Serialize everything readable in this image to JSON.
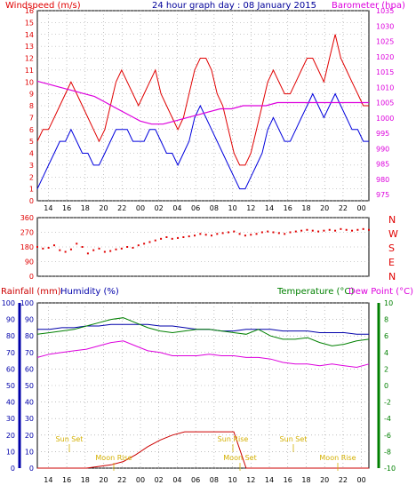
{
  "header": {
    "left_label": "Windspeed (m/s)",
    "title": "24 hour graph day : 08 January 2015",
    "right_label": "Barometer (hpa)"
  },
  "colors": {
    "wind_gust": "#e00000",
    "wind_avg": "#0000dd",
    "barometer": "#dd00dd",
    "direction": "#e00000",
    "humidity": "#0000aa",
    "temperature": "#008000",
    "dewpoint": "#dd00dd",
    "rainfall": "#cc0000",
    "sun_moon": "#d4b000",
    "axis": "#000000",
    "grid": "#999999"
  },
  "chart_data": [
    {
      "type": "line",
      "title": "24 hour graph day : 08 January 2015",
      "xlabel": "",
      "x_ticks": [
        "14",
        "16",
        "18",
        "20",
        "22",
        "00",
        "02",
        "04",
        "06",
        "08",
        "10",
        "12",
        "14",
        "16",
        "18",
        "20",
        "22",
        "00"
      ],
      "left_axis": {
        "label": "Windspeed (m/s)",
        "ylim": [
          0,
          16
        ],
        "ticks": [
          "0",
          "1",
          "2",
          "3",
          "4",
          "5",
          "6",
          "7",
          "8",
          "9",
          "10",
          "11",
          "12",
          "13",
          "14",
          "15",
          "16"
        ]
      },
      "right_axis": {
        "label": "Barometer (hpa)",
        "ylim": [
          973,
          1035
        ],
        "ticks": [
          "975",
          "980",
          "985",
          "990",
          "995",
          "1000",
          "1005",
          "1010",
          "1015",
          "1020",
          "1025",
          "1030",
          "1035"
        ]
      },
      "series": [
        {
          "name": "",
          "axis": "left",
          "values": [
            5,
            6,
            6,
            7,
            8,
            9,
            10,
            9,
            8,
            7,
            6,
            5,
            6,
            8,
            10,
            11,
            10,
            9,
            8,
            9,
            10,
            11,
            9,
            8,
            7,
            6,
            7,
            9,
            11,
            12,
            12,
            11,
            9,
            8,
            6,
            4,
            3,
            3,
            4,
            6,
            8,
            10,
            11,
            10,
            9,
            9,
            10,
            11,
            12,
            12,
            11,
            10,
            12,
            14,
            12,
            11,
            10,
            9,
            8,
            8
          ]
        },
        {
          "name": "",
          "axis": "left",
          "values": [
            1,
            2,
            3,
            4,
            5,
            5,
            6,
            5,
            4,
            4,
            3,
            3,
            4,
            5,
            6,
            6,
            6,
            5,
            5,
            5,
            6,
            6,
            5,
            4,
            4,
            3,
            4,
            5,
            7,
            8,
            7,
            6,
            5,
            4,
            3,
            2,
            1,
            1,
            2,
            3,
            4,
            6,
            7,
            6,
            5,
            5,
            6,
            7,
            8,
            9,
            8,
            7,
            8,
            9,
            8,
            7,
            6,
            6,
            5,
            5
          ]
        },
        {
          "name": "",
          "axis": "right",
          "values": [
            1012,
            1011,
            1010,
            1009,
            1008,
            1007,
            1005,
            1003,
            1001,
            999,
            998,
            998,
            999,
            1000,
            1001,
            1002,
            1003,
            1003,
            1004,
            1004,
            1004,
            1005,
            1005,
            1005,
            1005,
            1005,
            1005,
            1005,
            1005,
            1005
          ]
        }
      ]
    },
    {
      "type": "scatter",
      "title": "",
      "left_axis": {
        "ylim": [
          0,
          360
        ],
        "ticks": [
          "0",
          "90",
          "180",
          "270",
          "360"
        ]
      },
      "right_axis_labels": [
        "N",
        "W",
        "S",
        "E",
        "N"
      ],
      "series": [
        {
          "name": "",
          "values": [
            180,
            170,
            175,
            190,
            160,
            150,
            165,
            200,
            180,
            140,
            160,
            170,
            150,
            155,
            165,
            170,
            180,
            175,
            190,
            200,
            210,
            220,
            230,
            240,
            230,
            235,
            240,
            245,
            250,
            260,
            255,
            250,
            260,
            265,
            270,
            275,
            260,
            250,
            255,
            260,
            270,
            275,
            270,
            265,
            260,
            270,
            275,
            280,
            285,
            280,
            275,
            280,
            285,
            280,
            290,
            285,
            280,
            285,
            290,
            285
          ]
        }
      ]
    },
    {
      "type": "line",
      "title": "",
      "legend": [
        "Rainfall (mm)",
        "Humidity (%)",
        "Temperature (°C)",
        "Dew Point (°C)"
      ],
      "x_ticks": [
        "14",
        "16",
        "18",
        "20",
        "22",
        "00",
        "02",
        "04",
        "06",
        "08",
        "10",
        "12",
        "14",
        "16",
        "18",
        "20",
        "22",
        "00"
      ],
      "axes": {
        "rainfall": {
          "label": "Rainfall (mm)",
          "ylim": [
            0,
            100
          ],
          "ticks": [
            "0",
            "10",
            "20",
            "30",
            "40",
            "50",
            "60",
            "70",
            "80",
            "90",
            "100"
          ]
        },
        "humidity": {
          "label": "Humidity (%)",
          "ylim": [
            0,
            100
          ],
          "ticks": [
            "0",
            "10",
            "20",
            "30",
            "40",
            "50",
            "60",
            "70",
            "80",
            "90",
            "100"
          ]
        },
        "temperature": {
          "label": "Temperature (°C)",
          "ylim": [
            -10,
            10
          ],
          "ticks": [
            "-10",
            "-8",
            "-6",
            "-4",
            "-2",
            "0",
            "2",
            "4",
            "6",
            "8",
            "10"
          ]
        }
      },
      "annotations": [
        "Sun Set",
        "Moon Rise",
        "Sun Rise",
        "Moon Set",
        "Sun Set",
        "Moon Rise"
      ],
      "series": [
        {
          "name": "Humidity (%)",
          "axis": "humidity",
          "values": [
            84,
            84,
            85,
            85,
            86,
            86,
            87,
            87,
            87,
            87,
            86,
            86,
            85,
            84,
            84,
            83,
            83,
            84,
            84,
            84,
            83,
            83,
            83,
            82,
            82,
            82,
            81,
            81
          ]
        },
        {
          "name": "Temperature (°C)",
          "axis": "temperature",
          "values": [
            6.2,
            6.4,
            6.6,
            6.8,
            7.2,
            7.6,
            8.0,
            8.2,
            7.6,
            7.0,
            6.6,
            6.4,
            6.6,
            6.8,
            6.8,
            6.6,
            6.4,
            6.2,
            6.8,
            6.0,
            5.6,
            5.6,
            5.8,
            5.2,
            4.8,
            5.0,
            5.4,
            5.6
          ]
        },
        {
          "name": "Dew Point (°C)",
          "axis": "temperature",
          "values": [
            3.4,
            3.8,
            4.0,
            4.2,
            4.4,
            4.8,
            5.2,
            5.4,
            4.8,
            4.2,
            4.0,
            3.6,
            3.6,
            3.6,
            3.8,
            3.6,
            3.6,
            3.4,
            3.4,
            3.2,
            2.8,
            2.6,
            2.6,
            2.4,
            2.6,
            2.4,
            2.2,
            2.6
          ]
        },
        {
          "name": "Rainfall (mm)",
          "axis": "rainfall",
          "values": [
            0,
            0,
            0,
            0,
            0,
            1,
            2,
            4,
            8,
            13,
            17,
            20,
            22,
            22,
            22,
            22,
            22,
            0,
            0,
            0,
            0,
            0,
            0,
            0,
            0,
            0,
            0,
            0
          ]
        }
      ]
    }
  ]
}
